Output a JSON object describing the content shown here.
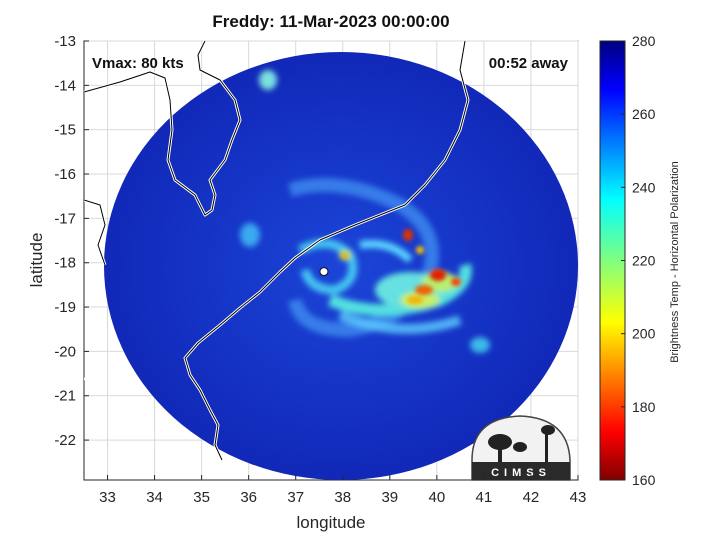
{
  "title": "Freddy: 11-Mar-2023 00:00:00",
  "annotations": {
    "vmax": "Vmax: 80 kts",
    "away": "00:52 away"
  },
  "axes": {
    "xlabel": "longitude",
    "ylabel": "latitude",
    "xlim": [
      32.5,
      43
    ],
    "ylim": [
      -22.9,
      -13
    ],
    "xticks": [
      "33",
      "34",
      "35",
      "36",
      "37",
      "38",
      "39",
      "40",
      "41",
      "42",
      "43"
    ],
    "yticks": [
      "-13",
      "-14",
      "-15",
      "-16",
      "-17",
      "-18",
      "-19",
      "-20",
      "-21",
      "-22"
    ],
    "grid": true
  },
  "colorbar": {
    "label": "Brightness Temp - Horizontal Polarization",
    "range": [
      160,
      280
    ],
    "ticks": [
      "280",
      "260",
      "240",
      "220",
      "200",
      "180",
      "160"
    ],
    "colormap": "jet"
  },
  "storm_center": {
    "lon": 37.6,
    "lat": -18.2
  },
  "logo": {
    "text": "CIMSS"
  },
  "colors": {
    "background_swath": "#1430c8",
    "coast": "#ffffff",
    "grid": "#d9d9d9"
  }
}
